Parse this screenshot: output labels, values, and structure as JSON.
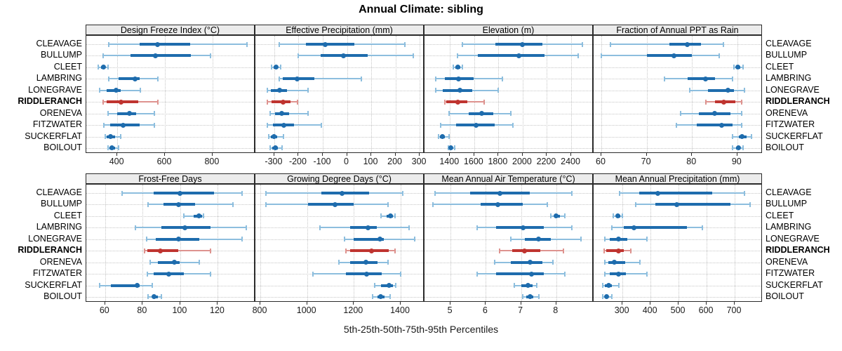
{
  "title": "Annual Climate: sibling",
  "caption": "5th-25th-50th-75th-95th Percentiles",
  "colors": {
    "blue": "#1e6cad",
    "blue_light": "#8dbede",
    "red": "#bf3430",
    "red_light": "#de938f",
    "grid": "#c6c6c6",
    "strip_bg": "#ececec",
    "panel_border": "#2b2b2b",
    "text": "#1a1a1a"
  },
  "chart_data": {
    "type": "dot-whisker percentile trellis (lattice dotplot), 2 rows x 4 columns",
    "title": "Annual Climate: sibling",
    "caption": "5th-25th-50th-75th-95th Percentiles",
    "percentiles": [
      5,
      25,
      50,
      75,
      95
    ],
    "sites": [
      "CLEAVAGE",
      "BULLUMP",
      "CLEET",
      "LAMBRING",
      "LONEGRAVE",
      "RIDDLERANCH",
      "ORENEVA",
      "FITZWATER",
      "SUCKERFLAT",
      "BOILOUT"
    ],
    "highlight_site": "RIDDLERANCH",
    "legend_position": "none",
    "grid": "dotted vertical at ticks, dotted horizontal per site row",
    "panels": [
      {
        "title": "Design Freeze Index (°C)",
        "grid_row": 0,
        "ticks": [
          400,
          600,
          800
        ],
        "domain": [
          270,
          980
        ],
        "values": [
          [
            365,
            495,
            570,
            705,
            945
          ],
          [
            340,
            455,
            560,
            710,
            790
          ],
          [
            320,
            332,
            341,
            351,
            362
          ],
          [
            365,
            405,
            475,
            495,
            570
          ],
          [
            325,
            356,
            394,
            415,
            497
          ],
          [
            340,
            356,
            415,
            488,
            570
          ],
          [
            360,
            400,
            450,
            480,
            555
          ],
          [
            345,
            370,
            425,
            495,
            555
          ],
          [
            350,
            356,
            371,
            391,
            415
          ],
          [
            360,
            368,
            379,
            392,
            406
          ]
        ]
      },
      {
        "title": "Effective Precipitation (mm)",
        "grid_row": 0,
        "ticks": [
          -300,
          -200,
          -100,
          0,
          100,
          200,
          300
        ],
        "domain": [
          -378,
          320
        ],
        "values": [
          [
            -280,
            -170,
            -90,
            30,
            240
          ],
          [
            -200,
            -110,
            -15,
            85,
            275
          ],
          [
            -312,
            -302,
            -293,
            -284,
            -274
          ],
          [
            -280,
            -265,
            -205,
            -135,
            58
          ],
          [
            -330,
            -313,
            -278,
            -247,
            -160
          ],
          [
            -328,
            -310,
            -265,
            -232,
            -203
          ],
          [
            -318,
            -298,
            -270,
            -240,
            -160
          ],
          [
            -328,
            -305,
            -262,
            -218,
            -105
          ],
          [
            -322,
            -313,
            -300,
            -287,
            -262
          ],
          [
            -318,
            -308,
            -296,
            -285,
            -267
          ]
        ]
      },
      {
        "title": "Elevation (m)",
        "grid_row": 0,
        "ticks": [
          1400,
          1600,
          1800,
          2000,
          2200,
          2400
        ],
        "domain": [
          1190,
          2585
        ],
        "values": [
          [
            1500,
            1775,
            2000,
            2160,
            2490
          ],
          [
            1460,
            1630,
            1970,
            2180,
            2460
          ],
          [
            1425,
            1442,
            1464,
            1486,
            1500
          ],
          [
            1285,
            1355,
            1470,
            1595,
            1830
          ],
          [
            1285,
            1340,
            1480,
            1585,
            1800
          ],
          [
            1355,
            1368,
            1464,
            1545,
            1680
          ],
          [
            1395,
            1555,
            1660,
            1760,
            1900
          ],
          [
            1325,
            1450,
            1615,
            1770,
            1920
          ],
          [
            1308,
            1320,
            1338,
            1360,
            1395
          ],
          [
            1385,
            1394,
            1406,
            1420,
            1440
          ]
        ]
      },
      {
        "title": "Fraction of Annual PPT as Rain",
        "grid_row": 0,
        "ticks": [
          60,
          70,
          80,
          90
        ],
        "domain": [
          58.3,
          95.6
        ],
        "values": [
          [
            62,
            75,
            79,
            82,
            87
          ],
          [
            60,
            70,
            76,
            80,
            86
          ],
          [
            89.2,
            89.7,
            90.1,
            90.6,
            91.2
          ],
          [
            74,
            79,
            83,
            85,
            89
          ],
          [
            79.5,
            83.5,
            88,
            89.2,
            91.5
          ],
          [
            83,
            85,
            87,
            89.5,
            91
          ],
          [
            77.5,
            81.5,
            85,
            88.5,
            91
          ],
          [
            76.5,
            81,
            86.5,
            89,
            91
          ],
          [
            89,
            90.3,
            91.1,
            92,
            93.1
          ],
          [
            89,
            89.7,
            90.2,
            90.7,
            91.2
          ]
        ]
      },
      {
        "title": "Frost-Free Days",
        "grid_row": 1,
        "ticks": [
          60,
          80,
          100,
          120
        ],
        "domain": [
          50,
          140
        ],
        "values": [
          [
            69,
            86,
            100,
            118,
            133
          ],
          [
            83,
            91,
            99,
            108,
            128
          ],
          [
            102,
            107,
            110,
            111.5,
            112.5
          ],
          [
            76,
            90,
            102.5,
            116,
            135
          ],
          [
            82,
            87,
            99,
            110,
            133
          ],
          [
            81,
            82.5,
            89.5,
            99,
            116
          ],
          [
            84,
            88,
            97,
            99.5,
            110
          ],
          [
            82.5,
            86,
            94,
            102,
            116
          ],
          [
            57,
            63,
            77,
            78.5,
            85
          ],
          [
            83,
            85,
            86,
            88,
            90
          ]
        ]
      },
      {
        "title": "Growing Degree Days (°C)",
        "grid_row": 1,
        "ticks": [
          800,
          1000,
          1200,
          1400
        ],
        "domain": [
          779,
          1502
        ],
        "values": [
          [
            825,
            1060,
            1150,
            1265,
            1410
          ],
          [
            825,
            1005,
            1120,
            1200,
            1345
          ],
          [
            1315,
            1340,
            1355,
            1366,
            1376
          ],
          [
            1055,
            1185,
            1260,
            1297,
            1435
          ],
          [
            1160,
            1200,
            1310,
            1327,
            1460
          ],
          [
            1165,
            1185,
            1275,
            1350,
            1375
          ],
          [
            1135,
            1185,
            1250,
            1300,
            1345
          ],
          [
            1025,
            1165,
            1255,
            1320,
            1400
          ],
          [
            1290,
            1315,
            1350,
            1368,
            1380
          ],
          [
            1280,
            1300,
            1315,
            1332,
            1355
          ]
        ]
      },
      {
        "title": "Mean Annual Air Temperature (°C)",
        "grid_row": 1,
        "ticks": [
          5,
          6,
          7,
          8
        ],
        "domain": [
          4.26,
          9.06
        ],
        "values": [
          [
            4.55,
            5.55,
            6.4,
            7.25,
            8.45
          ],
          [
            4.5,
            5.85,
            6.35,
            7.05,
            7.75
          ],
          [
            7.85,
            7.95,
            8.0,
            8.1,
            8.25
          ],
          [
            5.75,
            6.3,
            7.05,
            7.65,
            8.45
          ],
          [
            6.7,
            7.1,
            7.5,
            7.85,
            8.7
          ],
          [
            6.4,
            6.75,
            7.1,
            7.55,
            8.2
          ],
          [
            6.25,
            6.7,
            7.25,
            7.6,
            7.9
          ],
          [
            5.75,
            6.3,
            7.3,
            7.65,
            8.25
          ],
          [
            6.8,
            7.0,
            7.2,
            7.32,
            7.45
          ],
          [
            7.05,
            7.15,
            7.25,
            7.35,
            7.5
          ]
        ]
      },
      {
        "title": "Mean Annual Precipitation (mm)",
        "grid_row": 1,
        "ticks": [
          300,
          400,
          500,
          600,
          700
        ],
        "domain": [
          197,
          800
        ],
        "values": [
          [
            290,
            360,
            425,
            620,
            735
          ],
          [
            347,
            417,
            493,
            685,
            755
          ],
          [
            267,
            276,
            284,
            293,
            300
          ],
          [
            262,
            305,
            340,
            530,
            585
          ],
          [
            238,
            255,
            285,
            318,
            388
          ],
          [
            235,
            243,
            285,
            305,
            330
          ],
          [
            238,
            250,
            272,
            310,
            363
          ],
          [
            238,
            255,
            285,
            313,
            388
          ],
          [
            230,
            238,
            250,
            263,
            288
          ],
          [
            230,
            237,
            243,
            250,
            263
          ]
        ]
      }
    ]
  }
}
